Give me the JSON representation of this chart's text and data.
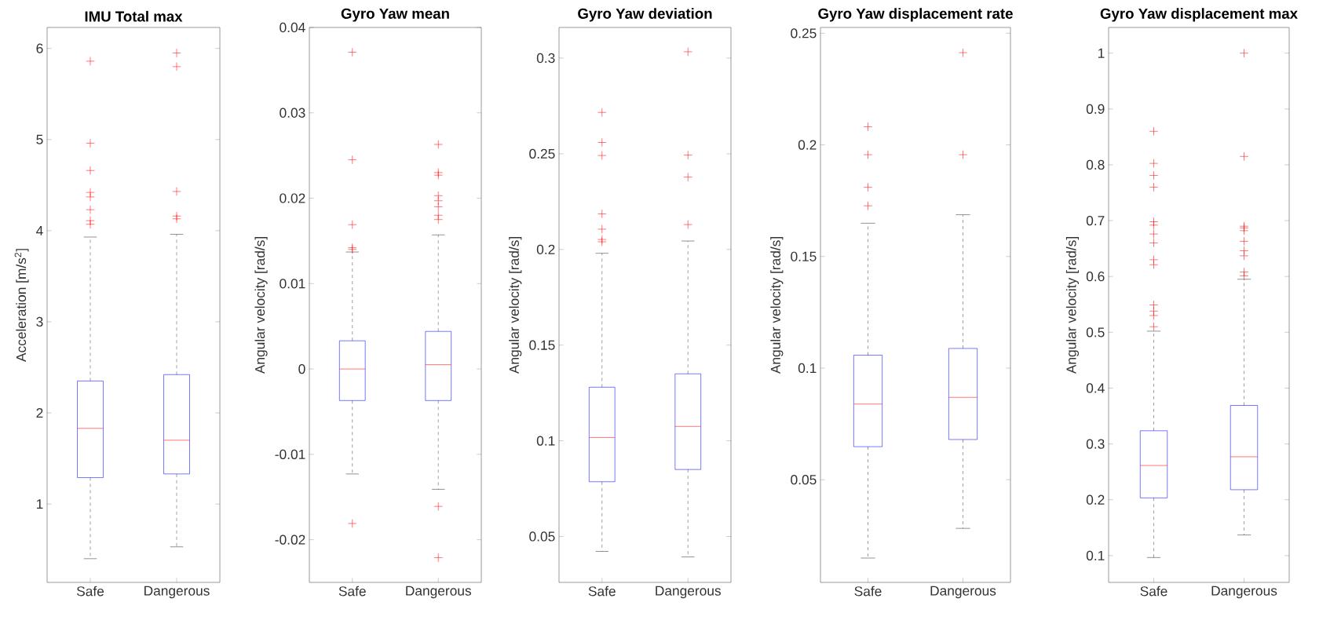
{
  "chart_data": [
    {
      "type": "box",
      "title": "IMU Total max",
      "ylabel": "Acceleration [m/s$^{2}$]",
      "categories": [
        "Safe",
        "Dangerous"
      ],
      "ylim": [
        0.14,
        6.23
      ],
      "yticks": [
        1,
        2,
        3,
        4,
        5,
        6
      ],
      "marker": "cross",
      "boxes": [
        {
          "low": 0.4,
          "q1": 1.29,
          "median": 1.83,
          "q3": 2.35,
          "high": 3.93,
          "outliers": [
            5.86,
            4.96,
            4.66,
            4.42,
            4.37,
            4.23,
            4.11,
            4.07
          ]
        },
        {
          "low": 0.53,
          "q1": 1.33,
          "median": 1.7,
          "q3": 2.42,
          "high": 3.96,
          "outliers": [
            5.95,
            5.8,
            4.43,
            4.16,
            4.13
          ]
        }
      ]
    },
    {
      "type": "box",
      "title": "Gyro Yaw mean",
      "ylabel": "Angular velocity [rad/s]",
      "categories": [
        "Safe",
        "Dangerous"
      ],
      "ylim": [
        -0.025,
        0.04
      ],
      "yticks": [
        -0.02,
        -0.01,
        0,
        0.01,
        0.02,
        0.03,
        0.04
      ],
      "marker": "cross",
      "boxes": [
        {
          "low": -0.0123,
          "q1": -0.0037,
          "median": 0.0,
          "q3": 0.0033,
          "high": 0.0137,
          "outliers": [
            0.0371,
            0.0245,
            0.0169,
            0.0142,
            0.014,
            -0.0181
          ]
        },
        {
          "low": -0.0141,
          "q1": -0.0037,
          "median": 0.0005,
          "q3": 0.0044,
          "high": 0.0157,
          "outliers": [
            0.0263,
            0.023,
            0.0227,
            0.0203,
            0.0197,
            0.019,
            0.018,
            0.0175,
            -0.0161,
            -0.0221
          ]
        }
      ]
    },
    {
      "type": "box",
      "title": "Gyro Yaw deviation",
      "ylabel": "Angular velocity [rad/s]",
      "categories": [
        "Safe",
        "Dangerous"
      ],
      "ylim": [
        0.026,
        0.316
      ],
      "yticks": [
        0.05,
        0.1,
        0.15,
        0.2,
        0.25,
        0.3
      ],
      "marker": "cross",
      "boxes": [
        {
          "low": 0.0422,
          "q1": 0.0786,
          "median": 0.1017,
          "q3": 0.128,
          "high": 0.198,
          "outliers": [
            0.2716,
            0.2559,
            0.2491,
            0.2186,
            0.2106,
            0.2052,
            0.204
          ]
        },
        {
          "low": 0.0393,
          "q1": 0.085,
          "median": 0.1075,
          "q3": 0.135,
          "high": 0.2044,
          "outliers": [
            0.3033,
            0.2493,
            0.2378,
            0.213
          ]
        }
      ]
    },
    {
      "type": "box",
      "title": "Gyro Yaw displacement rate",
      "ylabel": "Angular velocity [rad/s]",
      "categories": [
        "Safe",
        "Dangerous"
      ],
      "ylim": [
        0.004,
        0.2526
      ],
      "yticks": [
        0.05,
        0.1,
        0.15,
        0.2,
        0.25
      ],
      "marker": "cross",
      "boxes": [
        {
          "low": 0.0149,
          "q1": 0.0648,
          "median": 0.0839,
          "q3": 0.1058,
          "high": 0.1649,
          "outliers": [
            0.2081,
            0.1956,
            0.181,
            0.1727
          ]
        },
        {
          "low": 0.0282,
          "q1": 0.068,
          "median": 0.0869,
          "q3": 0.1088,
          "high": 0.1687,
          "outliers": [
            0.2413,
            0.1956
          ]
        }
      ]
    },
    {
      "type": "box",
      "title": "Gyro Yaw displacement max",
      "ylabel": "Angular velocity [rad/s]",
      "categories": [
        "Safe",
        "Dangerous"
      ],
      "ylim": [
        0.052,
        1.046
      ],
      "yticks": [
        0.1,
        0.2,
        0.3,
        0.4,
        0.5,
        0.6,
        0.7,
        0.8,
        0.9,
        1
      ],
      "marker": "cross",
      "boxes": [
        {
          "low": 0.0965,
          "q1": 0.2034,
          "median": 0.2614,
          "q3": 0.3236,
          "high": 0.502,
          "outliers": [
            0.86,
            0.8026,
            0.781,
            0.76,
            0.698,
            0.692,
            0.676,
            0.66,
            0.63,
            0.621,
            0.549,
            0.538,
            0.53,
            0.51
          ]
        },
        {
          "low": 0.137,
          "q1": 0.218,
          "median": 0.277,
          "q3": 0.369,
          "high": 0.595,
          "outliers": [
            1.0,
            0.815,
            0.69,
            0.687,
            0.682,
            0.663,
            0.646,
            0.637,
            0.608,
            0.601
          ]
        }
      ]
    }
  ]
}
